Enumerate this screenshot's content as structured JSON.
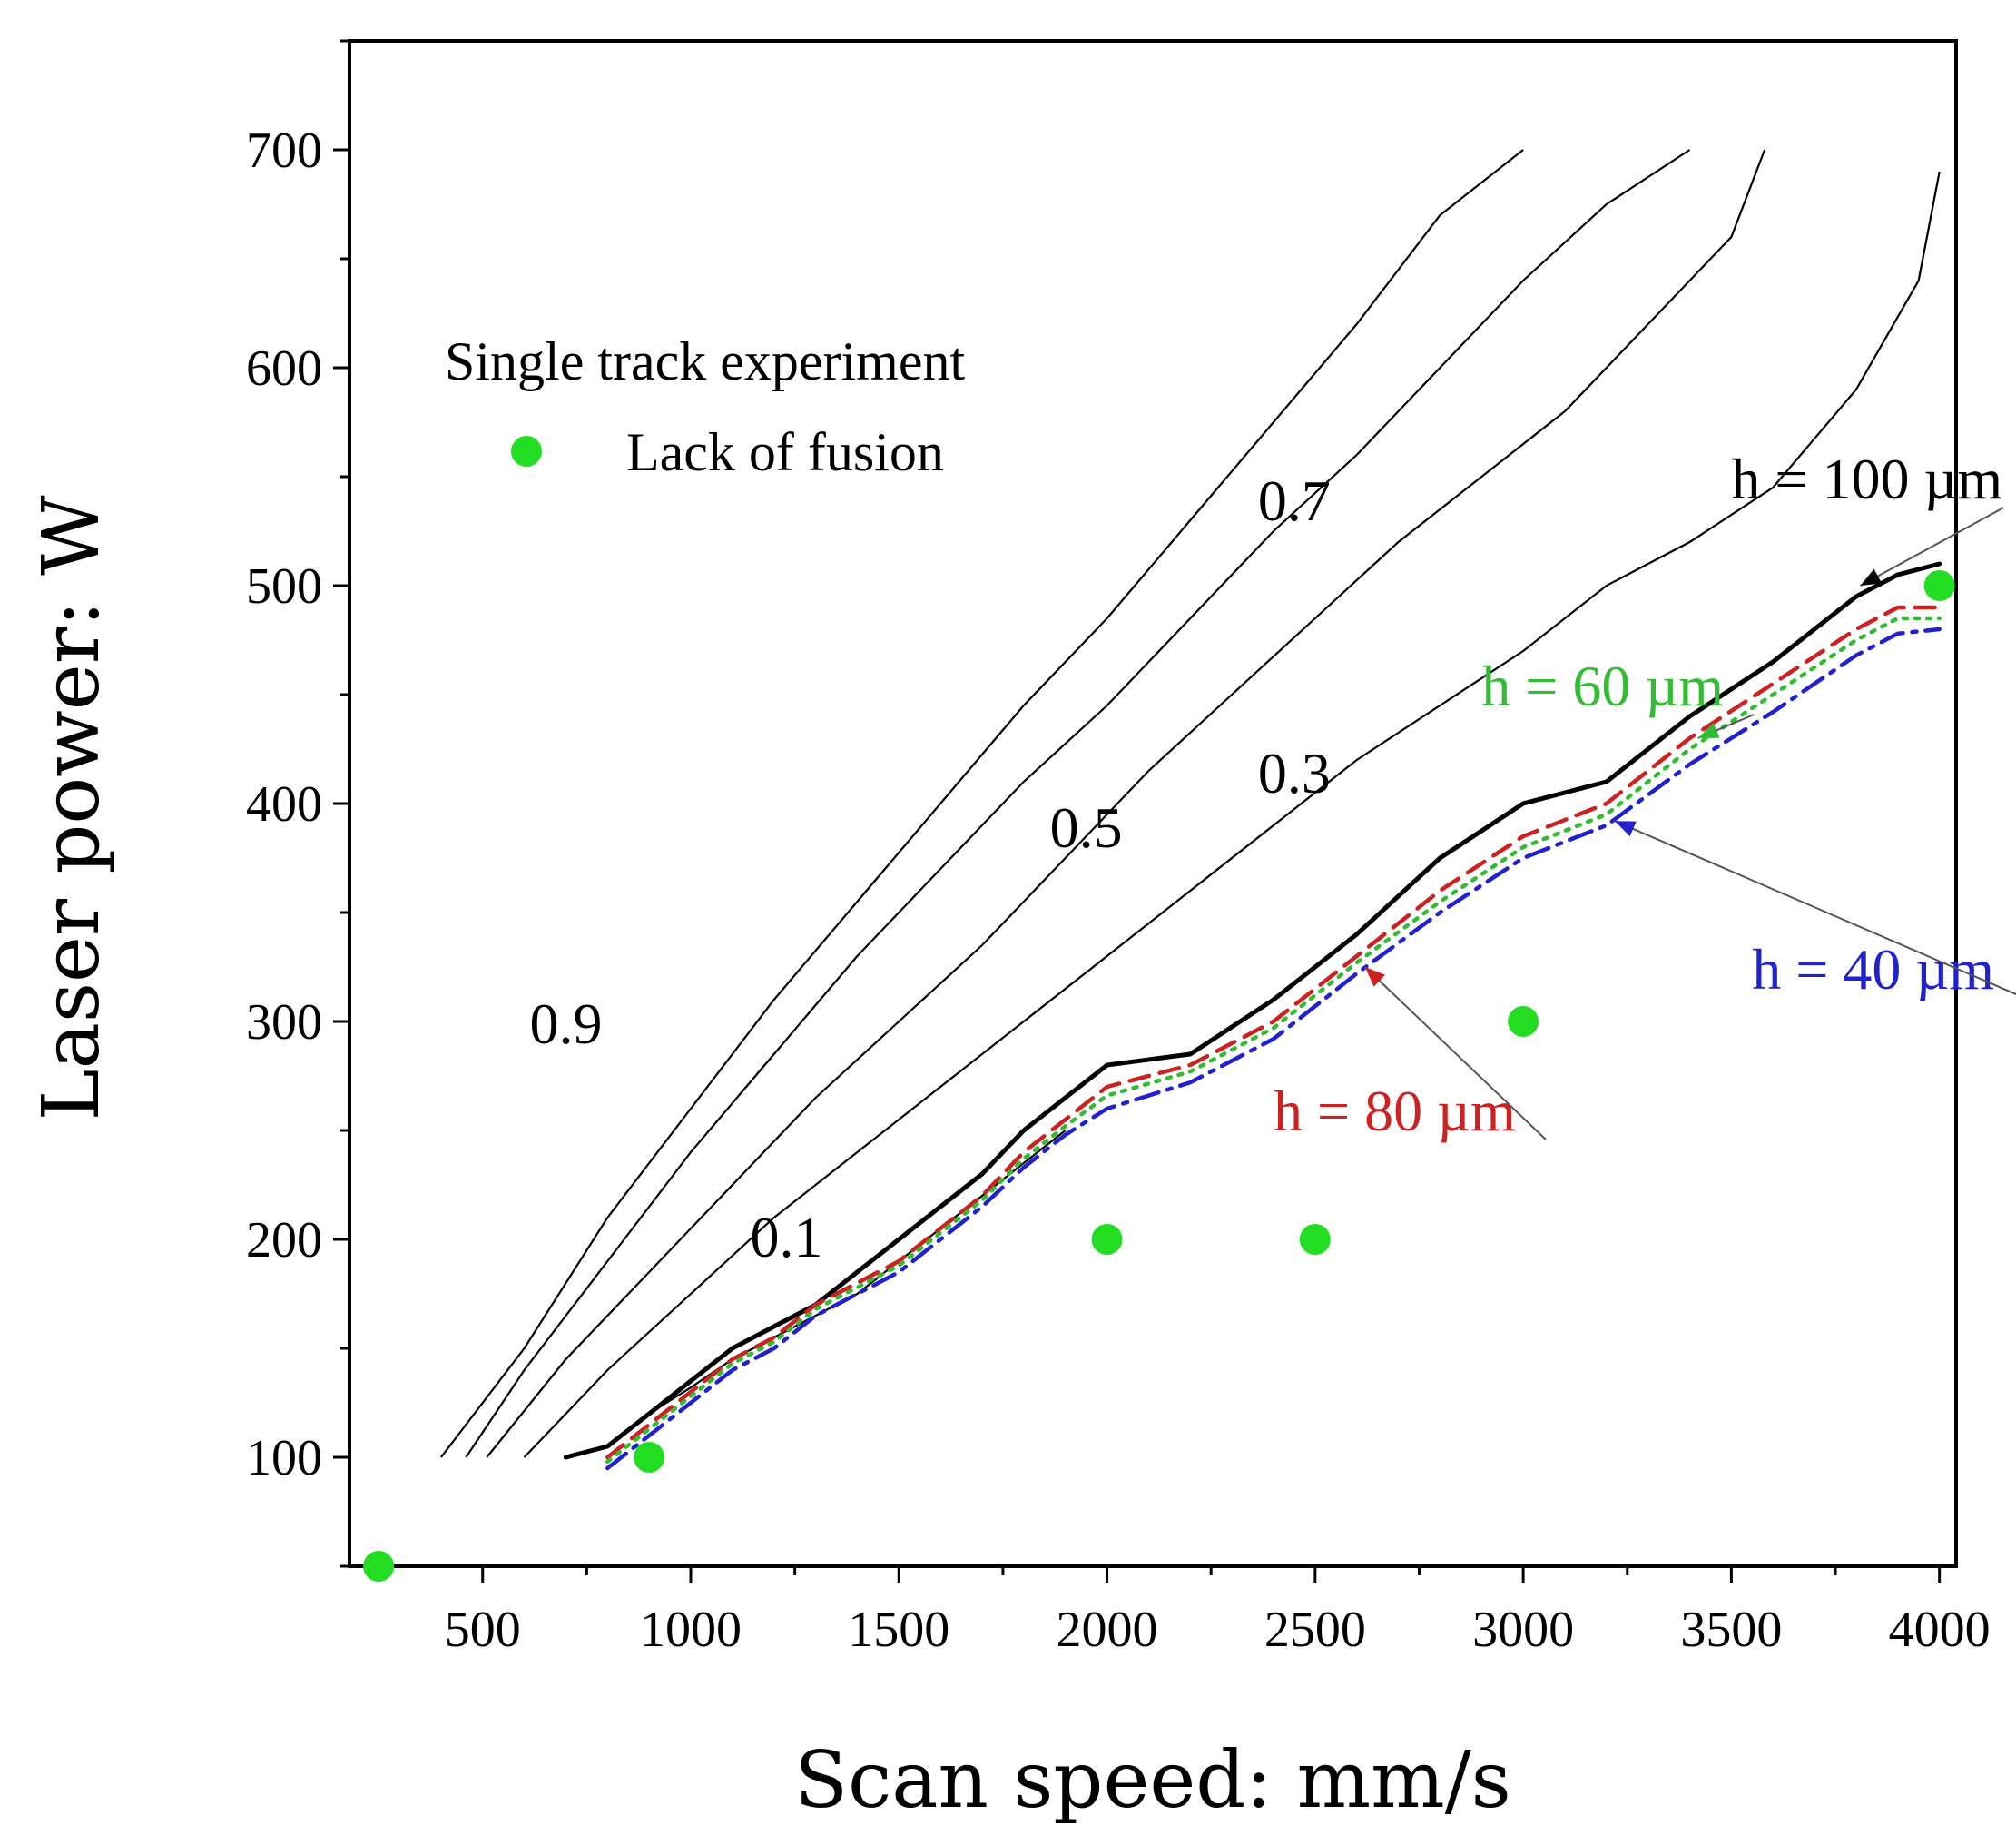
{
  "chart_data": {
    "type": "line",
    "xlabel": "Scan speed: mm/s",
    "ylabel": "Laser power: W",
    "xlim": [
      180,
      4040
    ],
    "ylim": [
      50,
      750
    ],
    "xticks": [
      500,
      1000,
      1500,
      2000,
      2500,
      3000,
      3500,
      4000
    ],
    "yticks": [
      100,
      200,
      300,
      400,
      500,
      600,
      700
    ],
    "legend": {
      "title": "Single track experiment",
      "entries": [
        {
          "label": "Lack of fusion",
          "color": "#22dd22"
        }
      ],
      "placement": "top-left"
    },
    "contours": [
      {
        "label": "0.9",
        "label_at": [
          700,
          290
        ],
        "points": [
          [
            400,
            100
          ],
          [
            600,
            150
          ],
          [
            800,
            210
          ],
          [
            1000,
            260
          ],
          [
            1200,
            310
          ],
          [
            1400,
            355
          ],
          [
            1600,
            400
          ],
          [
            1800,
            445
          ],
          [
            2000,
            485
          ],
          [
            2200,
            530
          ],
          [
            2400,
            575
          ],
          [
            2600,
            620
          ],
          [
            2800,
            670
          ],
          [
            3000,
            700
          ]
        ]
      },
      {
        "label": "0.7",
        "label_at": [
          2450,
          530
        ],
        "points": [
          [
            460,
            100
          ],
          [
            600,
            140
          ],
          [
            800,
            190
          ],
          [
            1000,
            240
          ],
          [
            1200,
            285
          ],
          [
            1400,
            330
          ],
          [
            1600,
            370
          ],
          [
            1800,
            410
          ],
          [
            2000,
            445
          ],
          [
            2200,
            485
          ],
          [
            2400,
            525
          ],
          [
            2600,
            560
          ],
          [
            2800,
            600
          ],
          [
            3000,
            640
          ],
          [
            3200,
            675
          ],
          [
            3400,
            700
          ]
        ]
      },
      {
        "label": "0.5",
        "label_at": [
          1950,
          380
        ],
        "points": [
          [
            510,
            100
          ],
          [
            700,
            145
          ],
          [
            900,
            185
          ],
          [
            1100,
            225
          ],
          [
            1300,
            265
          ],
          [
            1500,
            300
          ],
          [
            1700,
            335
          ],
          [
            1900,
            375
          ],
          [
            2100,
            415
          ],
          [
            2300,
            450
          ],
          [
            2500,
            485
          ],
          [
            2700,
            520
          ],
          [
            2900,
            550
          ],
          [
            3100,
            580
          ],
          [
            3300,
            620
          ],
          [
            3500,
            660
          ],
          [
            3580,
            700
          ]
        ]
      },
      {
        "label": "0.3",
        "label_at": [
          2450,
          405
        ],
        "points": [
          [
            600,
            100
          ],
          [
            800,
            140
          ],
          [
            1000,
            175
          ],
          [
            1200,
            210
          ],
          [
            1400,
            240
          ],
          [
            1600,
            270
          ],
          [
            1800,
            300
          ],
          [
            2000,
            330
          ],
          [
            2200,
            360
          ],
          [
            2400,
            390
          ],
          [
            2600,
            420
          ],
          [
            2800,
            445
          ],
          [
            3000,
            470
          ],
          [
            3200,
            500
          ],
          [
            3400,
            520
          ],
          [
            3600,
            545
          ],
          [
            3800,
            590
          ],
          [
            3950,
            640
          ],
          [
            4000,
            690
          ]
        ]
      },
      {
        "label": "0.1",
        "label_at": [
          1230,
          192
        ],
        "points": [
          [
            900,
            120
          ],
          [
            1000,
            132
          ],
          [
            1100,
            145
          ],
          [
            1200,
            155
          ],
          [
            1300,
            165
          ],
          [
            1400,
            175
          ],
          [
            1500,
            190
          ],
          [
            1600,
            205
          ],
          [
            1700,
            220
          ],
          [
            1800,
            235
          ],
          [
            1900,
            250
          ]
        ]
      }
    ],
    "series": [
      {
        "name": "h = 100 µm",
        "color": "#000000",
        "style": "solid",
        "label_at": [
          3500,
          540
        ],
        "arrow_to": [
          3810,
          500
        ],
        "points": [
          [
            700,
            100
          ],
          [
            800,
            105
          ],
          [
            900,
            120
          ],
          [
            1000,
            135
          ],
          [
            1100,
            150
          ],
          [
            1200,
            160
          ],
          [
            1300,
            170
          ],
          [
            1400,
            185
          ],
          [
            1500,
            200
          ],
          [
            1600,
            215
          ],
          [
            1700,
            230
          ],
          [
            1800,
            250
          ],
          [
            1900,
            265
          ],
          [
            2000,
            280
          ],
          [
            2200,
            285
          ],
          [
            2400,
            310
          ],
          [
            2600,
            340
          ],
          [
            2800,
            375
          ],
          [
            3000,
            400
          ],
          [
            3200,
            410
          ],
          [
            3400,
            440
          ],
          [
            3600,
            465
          ],
          [
            3800,
            495
          ],
          [
            3900,
            505
          ],
          [
            4000,
            510
          ]
        ]
      },
      {
        "name": "h = 80 µm",
        "color": "#cc2222",
        "style": "dashed",
        "label_at": [
          2400,
          250
        ],
        "arrow_to": [
          2620,
          325
        ],
        "points": [
          [
            800,
            100
          ],
          [
            900,
            115
          ],
          [
            1000,
            130
          ],
          [
            1100,
            145
          ],
          [
            1200,
            155
          ],
          [
            1300,
            170
          ],
          [
            1400,
            180
          ],
          [
            1500,
            190
          ],
          [
            1600,
            205
          ],
          [
            1700,
            220
          ],
          [
            1800,
            240
          ],
          [
            1900,
            255
          ],
          [
            2000,
            270
          ],
          [
            2200,
            280
          ],
          [
            2400,
            300
          ],
          [
            2600,
            330
          ],
          [
            2800,
            360
          ],
          [
            3000,
            385
          ],
          [
            3200,
            400
          ],
          [
            3400,
            430
          ],
          [
            3600,
            455
          ],
          [
            3800,
            480
          ],
          [
            3900,
            490
          ],
          [
            4000,
            490
          ]
        ]
      },
      {
        "name": "h = 60 µm",
        "color": "#33bb33",
        "style": "dotted",
        "label_at": [
          2900,
          445
        ],
        "arrow_to": [
          3420,
          430
        ],
        "points": [
          [
            800,
            98
          ],
          [
            900,
            113
          ],
          [
            1000,
            128
          ],
          [
            1100,
            143
          ],
          [
            1200,
            153
          ],
          [
            1300,
            168
          ],
          [
            1400,
            178
          ],
          [
            1500,
            188
          ],
          [
            1600,
            203
          ],
          [
            1700,
            218
          ],
          [
            1800,
            237
          ],
          [
            1900,
            252
          ],
          [
            2000,
            266
          ],
          [
            2200,
            277
          ],
          [
            2400,
            297
          ],
          [
            2600,
            327
          ],
          [
            2800,
            355
          ],
          [
            3000,
            380
          ],
          [
            3200,
            395
          ],
          [
            3400,
            425
          ],
          [
            3600,
            450
          ],
          [
            3800,
            475
          ],
          [
            3900,
            485
          ],
          [
            4000,
            485
          ]
        ]
      },
      {
        "name": "h = 40 µm",
        "color": "#2222cc",
        "style": "dashdot",
        "label_at": [
          3550,
          315
        ],
        "arrow_to": [
          3220,
          392
        ],
        "points": [
          [
            800,
            95
          ],
          [
            900,
            110
          ],
          [
            1000,
            125
          ],
          [
            1100,
            140
          ],
          [
            1200,
            150
          ],
          [
            1300,
            165
          ],
          [
            1400,
            175
          ],
          [
            1500,
            185
          ],
          [
            1600,
            200
          ],
          [
            1700,
            215
          ],
          [
            1800,
            233
          ],
          [
            1900,
            248
          ],
          [
            2000,
            260
          ],
          [
            2200,
            272
          ],
          [
            2400,
            292
          ],
          [
            2600,
            322
          ],
          [
            2800,
            350
          ],
          [
            3000,
            375
          ],
          [
            3200,
            390
          ],
          [
            3400,
            418
          ],
          [
            3600,
            442
          ],
          [
            3800,
            468
          ],
          [
            3900,
            478
          ],
          [
            4000,
            480
          ]
        ]
      }
    ],
    "lack_of_fusion_points": [
      [
        250,
        50
      ],
      [
        900,
        100
      ],
      [
        2000,
        200
      ],
      [
        2500,
        200
      ],
      [
        3000,
        300
      ],
      [
        4000,
        500
      ]
    ]
  }
}
